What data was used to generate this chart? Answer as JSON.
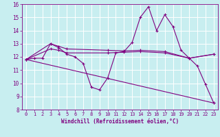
{
  "xlabel": "Windchill (Refroidissement éolien,°C)",
  "background_color": "#c8eef0",
  "line_color": "#800080",
  "grid_color": "#ffffff",
  "text_color": "#800080",
  "xlim": [
    -0.5,
    23.5
  ],
  "ylim": [
    8,
    16
  ],
  "yticks": [
    8,
    9,
    10,
    11,
    12,
    13,
    14,
    15,
    16
  ],
  "xticks": [
    0,
    1,
    2,
    3,
    4,
    5,
    6,
    7,
    8,
    9,
    10,
    11,
    12,
    13,
    14,
    15,
    16,
    17,
    18,
    19,
    20,
    21,
    22,
    23
  ],
  "line1_x": [
    0,
    1,
    2,
    3,
    4,
    5,
    6,
    7,
    8,
    9,
    10,
    11,
    12,
    13,
    14,
    15,
    16,
    17,
    18,
    19,
    20,
    21,
    22,
    23
  ],
  "line1_y": [
    11.8,
    11.9,
    11.9,
    13.0,
    12.7,
    12.2,
    12.0,
    11.5,
    9.7,
    9.5,
    10.4,
    12.3,
    12.4,
    13.1,
    15.0,
    15.8,
    14.0,
    15.2,
    14.3,
    12.5,
    11.9,
    11.3,
    9.9,
    8.5
  ],
  "line2_x": [
    0,
    3,
    4,
    5,
    10,
    12,
    14,
    17,
    20,
    23
  ],
  "line2_y": [
    11.8,
    13.0,
    12.8,
    12.6,
    12.5,
    12.45,
    12.5,
    12.4,
    11.9,
    12.2
  ],
  "line3_x": [
    0,
    3,
    4,
    5,
    10,
    12,
    14,
    17,
    20,
    23
  ],
  "line3_y": [
    11.8,
    12.6,
    12.5,
    12.3,
    12.3,
    12.35,
    12.4,
    12.3,
    11.9,
    12.2
  ],
  "line4_x": [
    0,
    23
  ],
  "line4_y": [
    11.8,
    8.5
  ]
}
